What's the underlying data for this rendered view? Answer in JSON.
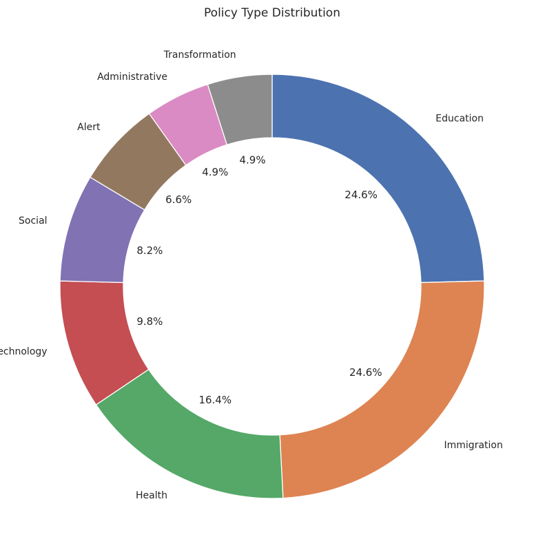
{
  "chart_data": {
    "type": "pie",
    "title": "Policy Type Distribution",
    "donut": true,
    "start_angle_deg": 90,
    "direction": "clockwise",
    "categories": [
      "Education",
      "Immigration",
      "Health",
      "Technology",
      "Social",
      "Alert",
      "Administrative",
      "Transformation"
    ],
    "values": [
      15,
      15,
      10,
      6,
      5,
      4,
      3,
      3
    ],
    "percent_labels": [
      "24.6%",
      "24.6%",
      "16.4%",
      "9.8%",
      "8.2%",
      "6.6%",
      "4.9%",
      "4.9%"
    ],
    "colors": [
      "#4c72b0",
      "#dd8452",
      "#55a868",
      "#c44e52",
      "#8172b3",
      "#937860",
      "#da8bc3",
      "#8c8c8c"
    ],
    "legend": "none"
  }
}
